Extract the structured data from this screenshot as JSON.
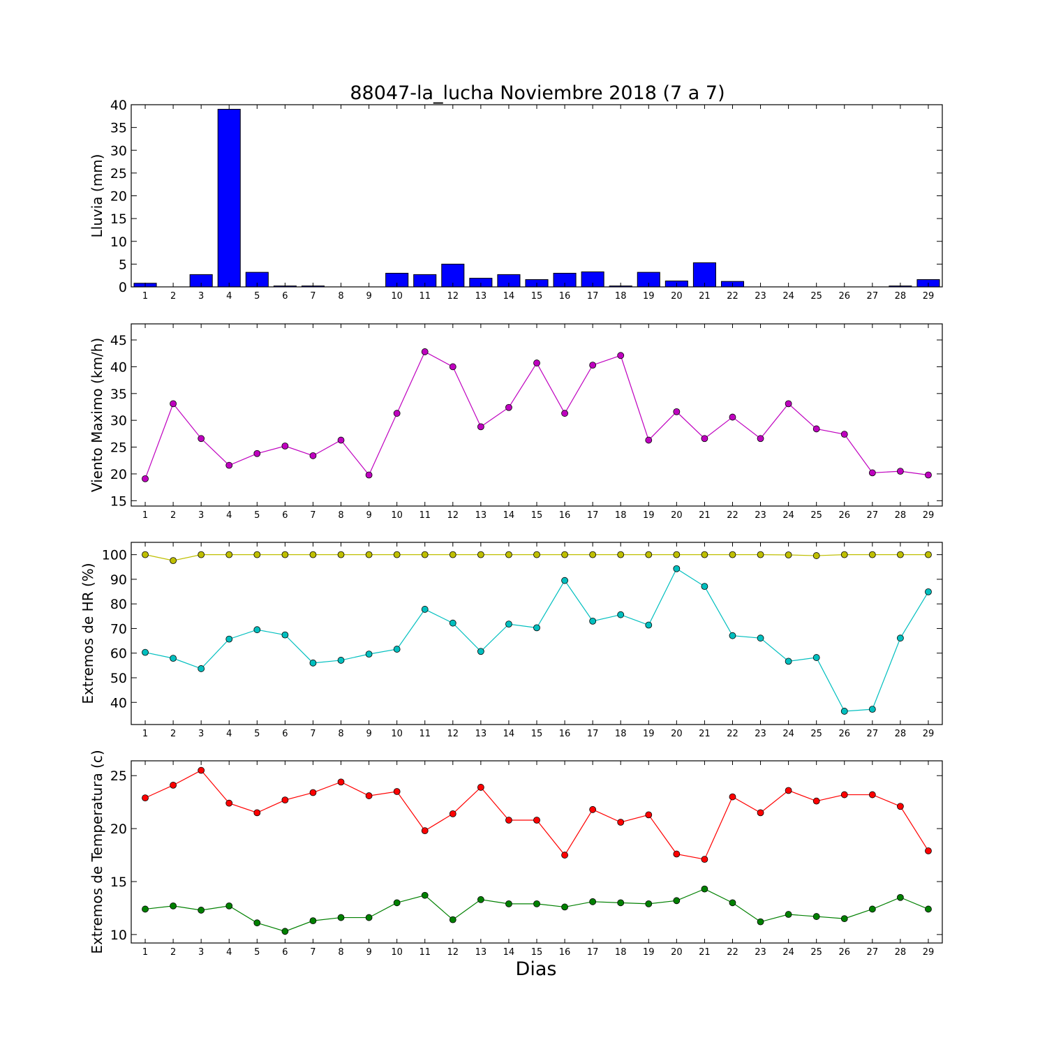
{
  "title": "88047-la_lucha Noviembre 2018  (7 a 7)",
  "xlabel": "Dias",
  "colors": {
    "lluvia": "#0000ff",
    "viento": "#bf00bf",
    "hr_max": "#bfbf00",
    "hr_min": "#00bfbf",
    "temp_max": "#ff0000",
    "temp_min": "#008000"
  },
  "chart_data": [
    {
      "type": "bar",
      "ylabel": "Lluvia (mm)",
      "categories": [
        "1",
        "2",
        "3",
        "4",
        "5",
        "6",
        "7",
        "8",
        "9",
        "10",
        "11",
        "12",
        "13",
        "14",
        "15",
        "16",
        "17",
        "18",
        "19",
        "20",
        "21",
        "22",
        "23",
        "24",
        "25",
        "26",
        "27",
        "28",
        "29"
      ],
      "ylim": [
        0,
        40
      ],
      "yticks": [
        0,
        5,
        10,
        15,
        20,
        25,
        30,
        35,
        40
      ],
      "series": [
        {
          "values": [
            0.8,
            0,
            2.7,
            39.0,
            3.2,
            0.2,
            0.2,
            0,
            0,
            3.0,
            2.7,
            5.0,
            1.9,
            2.7,
            1.6,
            3.0,
            3.3,
            0.2,
            3.2,
            1.3,
            5.3,
            1.2,
            0,
            0,
            0,
            0,
            0,
            0.2,
            1.6
          ]
        }
      ]
    },
    {
      "type": "line",
      "ylabel": "Viento Maximo (km/h)",
      "categories": [
        "1",
        "2",
        "3",
        "4",
        "5",
        "6",
        "7",
        "8",
        "9",
        "10",
        "11",
        "12",
        "13",
        "14",
        "15",
        "16",
        "17",
        "18",
        "19",
        "20",
        "21",
        "22",
        "23",
        "24",
        "25",
        "26",
        "27",
        "28",
        "29"
      ],
      "ylim": [
        14,
        48
      ],
      "yticks": [
        15,
        20,
        25,
        30,
        35,
        40,
        45
      ],
      "series": [
        {
          "values": [
            19.1,
            33.1,
            26.6,
            21.6,
            23.8,
            25.2,
            23.4,
            26.3,
            19.8,
            31.3,
            42.8,
            40.0,
            28.8,
            32.4,
            40.7,
            31.3,
            40.3,
            42.1,
            26.3,
            31.6,
            26.6,
            30.6,
            26.6,
            33.1,
            28.4,
            27.4,
            20.2,
            20.5,
            19.8
          ]
        }
      ]
    },
    {
      "type": "line",
      "ylabel": "Extremos de HR (%)",
      "categories": [
        "1",
        "2",
        "3",
        "4",
        "5",
        "6",
        "7",
        "8",
        "9",
        "10",
        "11",
        "12",
        "13",
        "14",
        "15",
        "16",
        "17",
        "18",
        "19",
        "20",
        "21",
        "22",
        "23",
        "24",
        "25",
        "26",
        "27",
        "28",
        "29"
      ],
      "ylim": [
        31,
        105
      ],
      "yticks": [
        40,
        50,
        60,
        70,
        80,
        90,
        100
      ],
      "series": [
        {
          "values": [
            100,
            97.6,
            100,
            100,
            100,
            100,
            100,
            100,
            100,
            100,
            100,
            100,
            100,
            100,
            100,
            100,
            100,
            100,
            100,
            100,
            100,
            100,
            100,
            99.9,
            99.6,
            100,
            100,
            100,
            100
          ]
        },
        {
          "values": [
            60.3,
            57.9,
            53.7,
            65.7,
            69.5,
            67.4,
            56.0,
            57.1,
            59.6,
            61.6,
            77.8,
            72.2,
            60.7,
            71.8,
            70.3,
            89.5,
            73.0,
            75.6,
            71.4,
            94.3,
            87.1,
            67.1,
            66.1,
            56.7,
            58.2,
            36.4,
            37.2,
            66.1,
            84.9
          ]
        }
      ]
    },
    {
      "type": "line",
      "ylabel": "Extremos de Temperatura (c)",
      "categories": [
        "1",
        "2",
        "3",
        "4",
        "5",
        "6",
        "7",
        "8",
        "9",
        "10",
        "11",
        "12",
        "13",
        "14",
        "15",
        "16",
        "17",
        "18",
        "19",
        "20",
        "21",
        "22",
        "23",
        "24",
        "25",
        "26",
        "27",
        "28",
        "29"
      ],
      "ylim": [
        9.2,
        26.4
      ],
      "yticks": [
        10,
        15,
        20,
        25
      ],
      "series": [
        {
          "values": [
            22.9,
            24.1,
            25.5,
            22.4,
            21.5,
            22.7,
            23.4,
            24.4,
            23.1,
            23.5,
            19.8,
            21.4,
            23.9,
            20.8,
            20.8,
            17.5,
            21.8,
            20.6,
            21.3,
            17.6,
            17.1,
            23.0,
            21.5,
            23.6,
            22.6,
            23.2,
            23.2,
            22.1,
            17.9
          ]
        },
        {
          "values": [
            12.4,
            12.7,
            12.3,
            12.7,
            11.1,
            10.3,
            11.3,
            11.6,
            11.6,
            13.0,
            13.7,
            11.4,
            13.3,
            12.9,
            12.9,
            12.6,
            13.1,
            13.0,
            12.9,
            13.2,
            14.3,
            13.0,
            11.2,
            11.9,
            11.7,
            11.5,
            12.4,
            13.5,
            12.4
          ]
        }
      ]
    }
  ]
}
